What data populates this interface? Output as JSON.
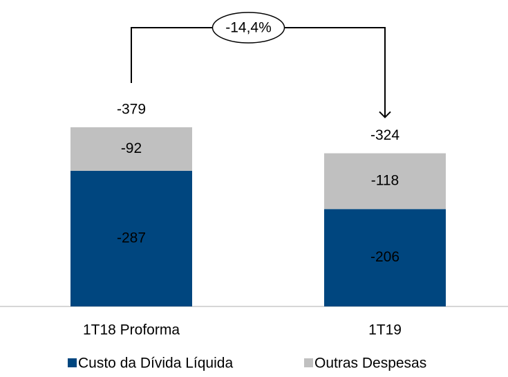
{
  "chart_data": {
    "type": "stacked_bar",
    "categories": [
      "1T18 Proforma",
      "1T19"
    ],
    "series": [
      {
        "name": "Custo da Dívida Líquida",
        "color": "#00467f",
        "values": [
          -287,
          -206
        ]
      },
      {
        "name": "Outras Despesas",
        "color": "#c0c0c0",
        "values": [
          -92,
          -118
        ]
      }
    ],
    "totals": [
      -379,
      -324
    ],
    "annotation": "-14,4%"
  }
}
